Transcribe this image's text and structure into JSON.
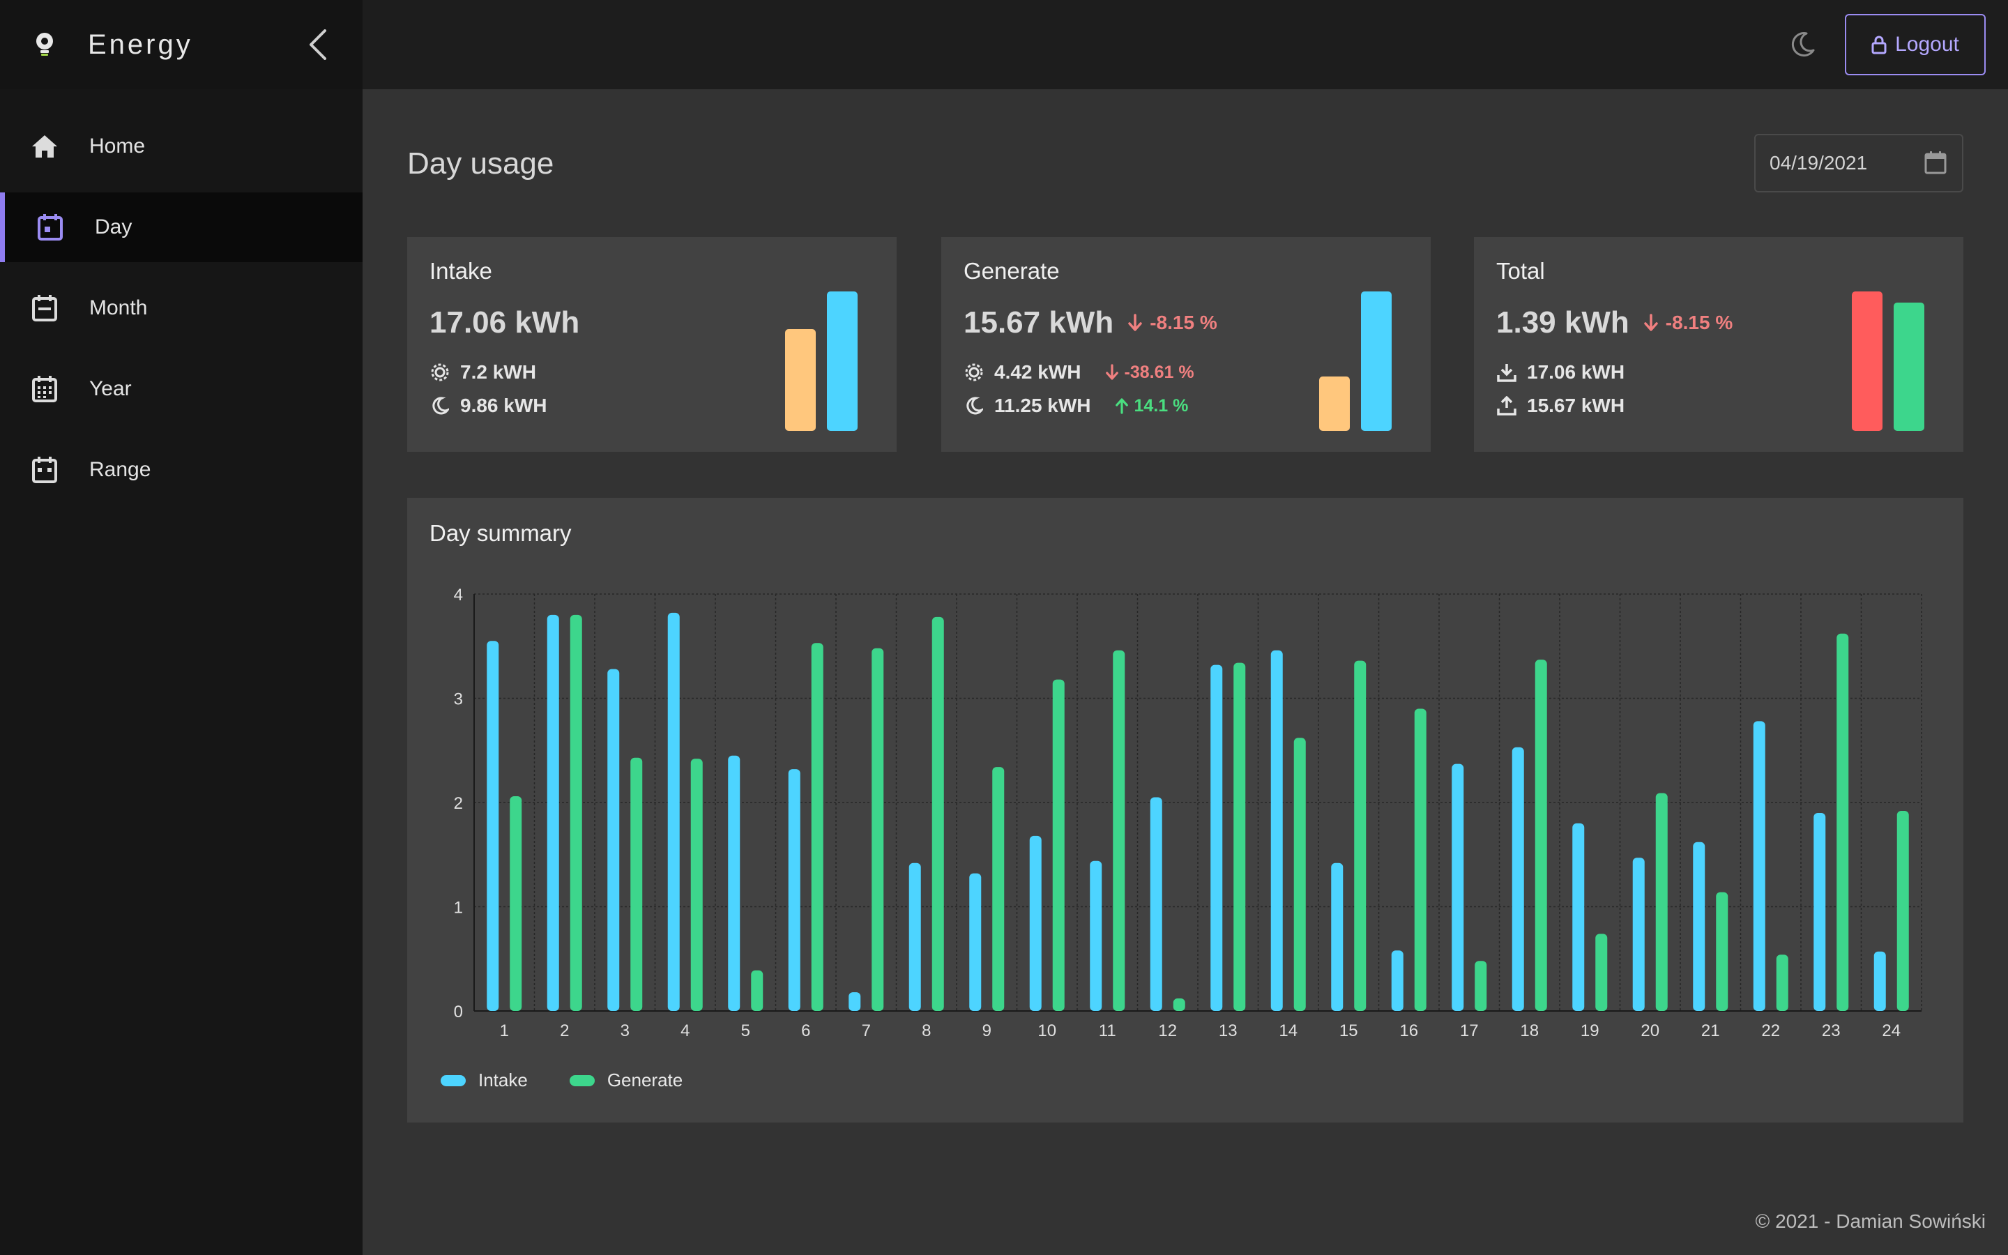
{
  "app": {
    "title": "Energy",
    "brand_color": "#8f7cf0"
  },
  "sidebar": {
    "items": [
      {
        "label": "Home",
        "icon": "home-icon",
        "active": false
      },
      {
        "label": "Day",
        "icon": "calendar-day-icon",
        "active": true
      },
      {
        "label": "Month",
        "icon": "calendar-month-icon",
        "active": false
      },
      {
        "label": "Year",
        "icon": "calendar-year-icon",
        "active": false
      },
      {
        "label": "Range",
        "icon": "calendar-range-icon",
        "active": false
      }
    ]
  },
  "header": {
    "theme_icon": "moon-icon",
    "logout_label": "Logout"
  },
  "page": {
    "title": "Day usage",
    "date_value": "04/19/2021"
  },
  "cards": {
    "intake": {
      "title": "Intake",
      "value": "17.06 kWh",
      "day_value": "7.2 kWH",
      "night_value": "9.86 kWH",
      "bars": [
        {
          "value": 0.73,
          "color": "#ffc77d"
        },
        {
          "value": 1.0,
          "color": "#4dd4ff"
        }
      ]
    },
    "generate": {
      "title": "Generate",
      "value": "15.67 kWh",
      "delta": "-8.15 %",
      "day_value": "4.42 kWH",
      "day_delta": "-38.61 %",
      "night_value": "11.25 kWH",
      "night_delta": "14.1 %",
      "bars": [
        {
          "value": 0.39,
          "color": "#ffc77d"
        },
        {
          "value": 1.0,
          "color": "#4dd4ff"
        }
      ]
    },
    "total": {
      "title": "Total",
      "value": "1.39 kWh",
      "delta": "-8.15 %",
      "download_value": "17.06 kWH",
      "upload_value": "15.67 kWH",
      "bars": [
        {
          "value": 1.0,
          "color": "#ff5c5c"
        },
        {
          "value": 0.92,
          "color": "#3dd68c"
        }
      ]
    }
  },
  "summary": {
    "title": "Day summary"
  },
  "chart_data": {
    "type": "bar",
    "title": "Day summary",
    "categories": [
      "1",
      "2",
      "3",
      "4",
      "5",
      "6",
      "7",
      "8",
      "9",
      "10",
      "11",
      "12",
      "13",
      "14",
      "15",
      "16",
      "17",
      "18",
      "19",
      "20",
      "21",
      "22",
      "23",
      "24"
    ],
    "series": [
      {
        "name": "Intake",
        "color": "#4dd4ff",
        "values": [
          3.55,
          3.8,
          3.28,
          3.82,
          2.45,
          2.32,
          0.18,
          1.42,
          1.32,
          1.68,
          1.44,
          2.05,
          3.32,
          3.46,
          1.42,
          0.58,
          2.37,
          2.53,
          1.8,
          1.47,
          1.62,
          2.78,
          1.9,
          0.57
        ]
      },
      {
        "name": "Generate",
        "color": "#3dd68c",
        "values": [
          2.06,
          3.8,
          2.43,
          2.42,
          0.39,
          3.53,
          3.48,
          3.78,
          2.34,
          3.18,
          3.46,
          0.12,
          3.34,
          2.62,
          3.36,
          2.9,
          0.48,
          3.37,
          0.74,
          2.09,
          1.14,
          0.54,
          3.62,
          1.92
        ]
      }
    ],
    "ylim": [
      0,
      4
    ],
    "yticks": [
      "0",
      "1",
      "2",
      "3",
      "4"
    ],
    "grid": true,
    "legend": "bottom-left"
  },
  "footer": {
    "text": "© 2021 - Damian Sowiński"
  }
}
